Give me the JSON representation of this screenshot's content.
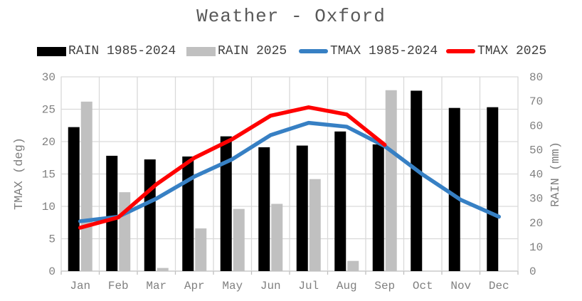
{
  "chart_data": {
    "type": "combo",
    "title": "Weather - Oxford",
    "categories": [
      "Jan",
      "Feb",
      "Mar",
      "Apr",
      "May",
      "Jun",
      "Jul",
      "Aug",
      "Sep",
      "Oct",
      "Nov",
      "Dec"
    ],
    "series": [
      {
        "name": "RAIN 1985-2024",
        "type": "bar",
        "axis": "right",
        "color": "#000000",
        "values": [
          59.3,
          47.5,
          46.0,
          47.2,
          55.5,
          51.0,
          51.7,
          57.5,
          52.2,
          74.3,
          67.2,
          67.5
        ]
      },
      {
        "name": "RAIN 2025",
        "type": "bar",
        "axis": "right",
        "color": "#C0C0C0",
        "values": [
          69.8,
          32.5,
          1.3,
          17.6,
          25.6,
          27.7,
          37.9,
          4.2,
          74.5,
          null,
          null,
          null
        ]
      },
      {
        "name": "TMAX 1985-2024",
        "type": "line",
        "axis": "left",
        "color": "#3780C4",
        "values": [
          7.7,
          8.4,
          11.2,
          14.6,
          17.3,
          21.0,
          22.9,
          22.3,
          19.3,
          14.9,
          11.0,
          8.4
        ]
      },
      {
        "name": "TMAX 2025",
        "type": "line",
        "axis": "left",
        "color": "#FF0000",
        "values": [
          6.7,
          8.3,
          13.4,
          17.5,
          20.4,
          24.0,
          25.3,
          24.2,
          19.5,
          null,
          null,
          null
        ]
      }
    ],
    "ylabel_left": "TMAX (deg)",
    "ylabel_right": "RAIN (mm)",
    "ylim_left": [
      0,
      30
    ],
    "ytick_step_left": 5,
    "ylim_right": [
      0,
      80
    ],
    "ytick_step_right": 10,
    "grid": true,
    "legend_position": "top"
  },
  "style": {
    "gridline_color": "#D9D9D9",
    "axis_line_color": "#BFBFBF",
    "tick_label_color": "#808080",
    "title_color": "#595959",
    "legend_text_color": "#404040"
  }
}
